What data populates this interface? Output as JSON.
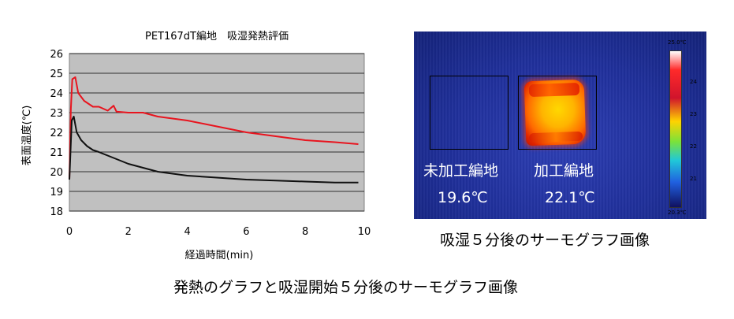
{
  "chart_data": {
    "type": "line",
    "title": "PET167dT編地　吸湿発熱評価",
    "xlabel": "経過時間(min)",
    "ylabel": "表面温度(℃)",
    "xlim": [
      0,
      10
    ],
    "ylim": [
      18,
      26
    ],
    "xticks": [
      0,
      2,
      4,
      6,
      8,
      10
    ],
    "yticks": [
      18,
      19,
      20,
      21,
      22,
      23,
      24,
      25,
      26
    ],
    "grid": true,
    "background": "#c0c0c0",
    "series": [
      {
        "color": "#e8141e",
        "x": [
          0,
          0.05,
          0.1,
          0.2,
          0.3,
          0.5,
          0.8,
          1.0,
          1.3,
          1.5,
          1.6,
          2.0,
          2.5,
          3.0,
          3.5,
          4.0,
          5.0,
          6.0,
          7.0,
          8.0,
          9.0,
          9.8
        ],
        "y": [
          19.6,
          23.2,
          24.7,
          24.8,
          24.0,
          23.6,
          23.3,
          23.3,
          23.1,
          23.35,
          23.05,
          23.0,
          23.0,
          22.8,
          22.7,
          22.6,
          22.3,
          22.0,
          21.8,
          21.6,
          21.5,
          21.4
        ]
      },
      {
        "color": "#101010",
        "x": [
          0,
          0.08,
          0.15,
          0.25,
          0.4,
          0.6,
          0.8,
          1.0,
          1.5,
          2.0,
          2.5,
          3.0,
          4.0,
          5.0,
          6.0,
          7.0,
          8.0,
          9.0,
          9.8
        ],
        "y": [
          19.6,
          22.6,
          22.8,
          22.0,
          21.6,
          21.3,
          21.1,
          21.0,
          20.7,
          20.4,
          20.2,
          20.0,
          19.8,
          19.7,
          19.6,
          19.55,
          19.5,
          19.45,
          19.45
        ]
      }
    ]
  },
  "thermography": {
    "label_untreated": "未加工編地",
    "label_treated": "加工編地",
    "temp_untreated": "19.6℃",
    "temp_treated": "22.1℃",
    "colorbar_max": "25.0℃",
    "colorbar_min": "20.3℃",
    "colorbar_ticks": [
      "24",
      "23",
      "22",
      "21"
    ],
    "caption": "吸湿５分後のサーモグラフ画像"
  },
  "main_caption": "発熱のグラフと吸湿開始５分後のサーモグラフ画像"
}
